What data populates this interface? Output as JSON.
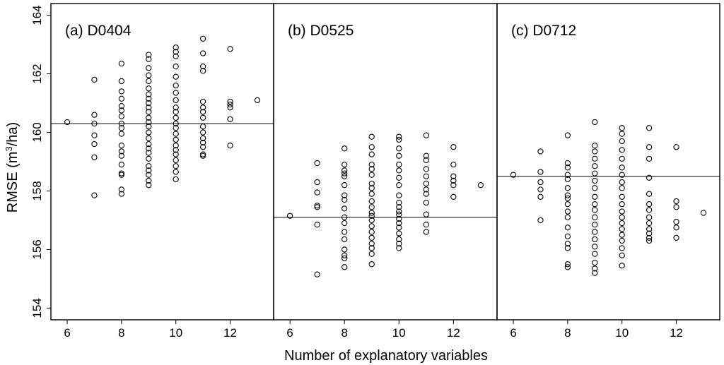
{
  "chart_data": {
    "type": "scatter",
    "xlabel": "Number of explanatory variables",
    "ylabel_main": "RMSE (m",
    "ylabel_sup": "3",
    "ylabel_tail": "/ha)",
    "ylim": [
      153.6,
      164.4
    ],
    "yticks": [
      "154",
      "156",
      "158",
      "160",
      "162",
      "164"
    ],
    "xlim": [
      5.4,
      13.6
    ],
    "xticks": [
      "6",
      "8",
      "10",
      "12"
    ],
    "panels": [
      {
        "title": "(a) D0404",
        "hline": 160.3,
        "points": [
          [
            6,
            160.35
          ],
          [
            7,
            161.8
          ],
          [
            7,
            160.6
          ],
          [
            7,
            160.3
          ],
          [
            7,
            159.9
          ],
          [
            7,
            159.6
          ],
          [
            7,
            159.15
          ],
          [
            7,
            157.85
          ],
          [
            8,
            162.35
          ],
          [
            8,
            161.75
          ],
          [
            8,
            161.4
          ],
          [
            8,
            161.15
          ],
          [
            8,
            160.9
          ],
          [
            8,
            160.75
          ],
          [
            8,
            160.55
          ],
          [
            8,
            160.3
          ],
          [
            8,
            160.15
          ],
          [
            8,
            159.95
          ],
          [
            8,
            159.55
          ],
          [
            8,
            159.35
          ],
          [
            8,
            159.2
          ],
          [
            8,
            158.9
          ],
          [
            8,
            158.6
          ],
          [
            8,
            158.55
          ],
          [
            8,
            158.05
          ],
          [
            8,
            157.9
          ],
          [
            9,
            162.65
          ],
          [
            9,
            162.5
          ],
          [
            9,
            162.2
          ],
          [
            9,
            161.95
          ],
          [
            9,
            161.75
          ],
          [
            9,
            161.5
          ],
          [
            9,
            161.3
          ],
          [
            9,
            161.15
          ],
          [
            9,
            161.0
          ],
          [
            9,
            160.85
          ],
          [
            9,
            160.7
          ],
          [
            9,
            160.5
          ],
          [
            9,
            160.35
          ],
          [
            9,
            160.2
          ],
          [
            9,
            160.0
          ],
          [
            9,
            159.8
          ],
          [
            9,
            159.6
          ],
          [
            9,
            159.45
          ],
          [
            9,
            159.3
          ],
          [
            9,
            159.1
          ],
          [
            9,
            158.85
          ],
          [
            9,
            158.7
          ],
          [
            9,
            158.55
          ],
          [
            9,
            158.35
          ],
          [
            9,
            158.2
          ],
          [
            10,
            162.9
          ],
          [
            10,
            162.75
          ],
          [
            10,
            162.6
          ],
          [
            10,
            162.25
          ],
          [
            10,
            161.9
          ],
          [
            10,
            161.6
          ],
          [
            10,
            161.35
          ],
          [
            10,
            161.1
          ],
          [
            10,
            160.85
          ],
          [
            10,
            160.7
          ],
          [
            10,
            160.5
          ],
          [
            10,
            160.3
          ],
          [
            10,
            160.15
          ],
          [
            10,
            159.95
          ],
          [
            10,
            159.75
          ],
          [
            10,
            159.55
          ],
          [
            10,
            159.4
          ],
          [
            10,
            159.25
          ],
          [
            10,
            159.05
          ],
          [
            10,
            158.85
          ],
          [
            10,
            158.65
          ],
          [
            10,
            158.4
          ],
          [
            11,
            163.2
          ],
          [
            11,
            162.7
          ],
          [
            11,
            162.25
          ],
          [
            11,
            162.1
          ],
          [
            11,
            161.05
          ],
          [
            11,
            160.85
          ],
          [
            11,
            160.7
          ],
          [
            11,
            160.5
          ],
          [
            11,
            160.2
          ],
          [
            11,
            160.0
          ],
          [
            11,
            159.8
          ],
          [
            11,
            159.65
          ],
          [
            11,
            159.5
          ],
          [
            11,
            159.25
          ],
          [
            11,
            159.2
          ],
          [
            12,
            162.85
          ],
          [
            12,
            161.05
          ],
          [
            12,
            160.95
          ],
          [
            12,
            160.85
          ],
          [
            12,
            160.45
          ],
          [
            12,
            159.55
          ],
          [
            13,
            161.1
          ]
        ]
      },
      {
        "title": "(b) D0525",
        "hline": 157.1,
        "points": [
          [
            6,
            157.15
          ],
          [
            7,
            158.95
          ],
          [
            7,
            158.3
          ],
          [
            7,
            157.95
          ],
          [
            7,
            157.5
          ],
          [
            7,
            157.45
          ],
          [
            7,
            156.85
          ],
          [
            7,
            155.15
          ],
          [
            8,
            159.45
          ],
          [
            8,
            158.9
          ],
          [
            8,
            158.7
          ],
          [
            8,
            158.6
          ],
          [
            8,
            158.5
          ],
          [
            8,
            158.2
          ],
          [
            8,
            157.85
          ],
          [
            8,
            157.7
          ],
          [
            8,
            157.4
          ],
          [
            8,
            157.1
          ],
          [
            8,
            156.9
          ],
          [
            8,
            156.6
          ],
          [
            8,
            156.35
          ],
          [
            8,
            156.0
          ],
          [
            8,
            155.8
          ],
          [
            8,
            155.7
          ],
          [
            8,
            155.4
          ],
          [
            9,
            159.85
          ],
          [
            9,
            159.5
          ],
          [
            9,
            159.25
          ],
          [
            9,
            158.9
          ],
          [
            9,
            158.75
          ],
          [
            9,
            158.55
          ],
          [
            9,
            158.25
          ],
          [
            9,
            158.1
          ],
          [
            9,
            157.9
          ],
          [
            9,
            157.65
          ],
          [
            9,
            157.45
          ],
          [
            9,
            157.25
          ],
          [
            9,
            157.15
          ],
          [
            9,
            157.0
          ],
          [
            9,
            156.8
          ],
          [
            9,
            156.6
          ],
          [
            9,
            156.4
          ],
          [
            9,
            156.2
          ],
          [
            9,
            156.05
          ],
          [
            9,
            155.85
          ],
          [
            9,
            155.5
          ],
          [
            10,
            159.85
          ],
          [
            10,
            159.75
          ],
          [
            10,
            159.45
          ],
          [
            10,
            159.2
          ],
          [
            10,
            158.9
          ],
          [
            10,
            158.7
          ],
          [
            10,
            158.45
          ],
          [
            10,
            158.2
          ],
          [
            10,
            157.85
          ],
          [
            10,
            157.6
          ],
          [
            10,
            157.45
          ],
          [
            10,
            157.3
          ],
          [
            10,
            157.2
          ],
          [
            10,
            157.05
          ],
          [
            10,
            156.9
          ],
          [
            10,
            156.75
          ],
          [
            10,
            156.55
          ],
          [
            10,
            156.35
          ],
          [
            10,
            156.2
          ],
          [
            10,
            156.05
          ],
          [
            11,
            159.9
          ],
          [
            11,
            159.2
          ],
          [
            11,
            159.05
          ],
          [
            11,
            158.75
          ],
          [
            11,
            158.5
          ],
          [
            11,
            158.25
          ],
          [
            11,
            158.05
          ],
          [
            11,
            157.9
          ],
          [
            11,
            157.6
          ],
          [
            11,
            157.2
          ],
          [
            11,
            156.85
          ],
          [
            11,
            156.6
          ],
          [
            12,
            159.5
          ],
          [
            12,
            158.9
          ],
          [
            12,
            158.5
          ],
          [
            12,
            158.35
          ],
          [
            12,
            158.2
          ],
          [
            12,
            157.8
          ],
          [
            13,
            158.2
          ]
        ]
      },
      {
        "title": "(c) D0712",
        "hline": 158.5,
        "points": [
          [
            6,
            158.55
          ],
          [
            7,
            159.35
          ],
          [
            7,
            158.65
          ],
          [
            7,
            158.3
          ],
          [
            7,
            158.05
          ],
          [
            7,
            157.8
          ],
          [
            7,
            157.0
          ],
          [
            8,
            159.9
          ],
          [
            8,
            158.95
          ],
          [
            8,
            158.8
          ],
          [
            8,
            158.55
          ],
          [
            8,
            158.4
          ],
          [
            8,
            158.1
          ],
          [
            8,
            157.85
          ],
          [
            8,
            157.75
          ],
          [
            8,
            157.55
          ],
          [
            8,
            157.3
          ],
          [
            8,
            157.1
          ],
          [
            8,
            156.75
          ],
          [
            8,
            156.45
          ],
          [
            8,
            156.2
          ],
          [
            8,
            156.05
          ],
          [
            8,
            155.5
          ],
          [
            8,
            155.4
          ],
          [
            9,
            160.35
          ],
          [
            9,
            159.55
          ],
          [
            9,
            159.35
          ],
          [
            9,
            159.1
          ],
          [
            9,
            158.85
          ],
          [
            9,
            158.6
          ],
          [
            9,
            158.35
          ],
          [
            9,
            158.1
          ],
          [
            9,
            157.8
          ],
          [
            9,
            157.55
          ],
          [
            9,
            157.35
          ],
          [
            9,
            157.1
          ],
          [
            9,
            156.85
          ],
          [
            9,
            156.6
          ],
          [
            9,
            156.35
          ],
          [
            9,
            156.1
          ],
          [
            9,
            155.85
          ],
          [
            9,
            155.55
          ],
          [
            9,
            155.35
          ],
          [
            9,
            155.2
          ],
          [
            10,
            160.15
          ],
          [
            10,
            159.95
          ],
          [
            10,
            159.7
          ],
          [
            10,
            159.4
          ],
          [
            10,
            159.1
          ],
          [
            10,
            158.8
          ],
          [
            10,
            158.55
          ],
          [
            10,
            158.3
          ],
          [
            10,
            158.1
          ],
          [
            10,
            157.8
          ],
          [
            10,
            157.55
          ],
          [
            10,
            157.3
          ],
          [
            10,
            157.1
          ],
          [
            10,
            156.9
          ],
          [
            10,
            156.7
          ],
          [
            10,
            156.5
          ],
          [
            10,
            156.3
          ],
          [
            10,
            156.05
          ],
          [
            10,
            155.8
          ],
          [
            10,
            155.45
          ],
          [
            11,
            160.15
          ],
          [
            11,
            159.5
          ],
          [
            11,
            159.1
          ],
          [
            11,
            158.45
          ],
          [
            11,
            157.9
          ],
          [
            11,
            157.55
          ],
          [
            11,
            157.35
          ],
          [
            11,
            157.1
          ],
          [
            11,
            156.9
          ],
          [
            11,
            156.7
          ],
          [
            11,
            156.55
          ],
          [
            11,
            156.4
          ],
          [
            11,
            156.3
          ],
          [
            12,
            159.5
          ],
          [
            12,
            157.65
          ],
          [
            12,
            157.45
          ],
          [
            12,
            156.95
          ],
          [
            12,
            156.75
          ],
          [
            12,
            156.4
          ],
          [
            13,
            157.25
          ]
        ]
      }
    ]
  }
}
